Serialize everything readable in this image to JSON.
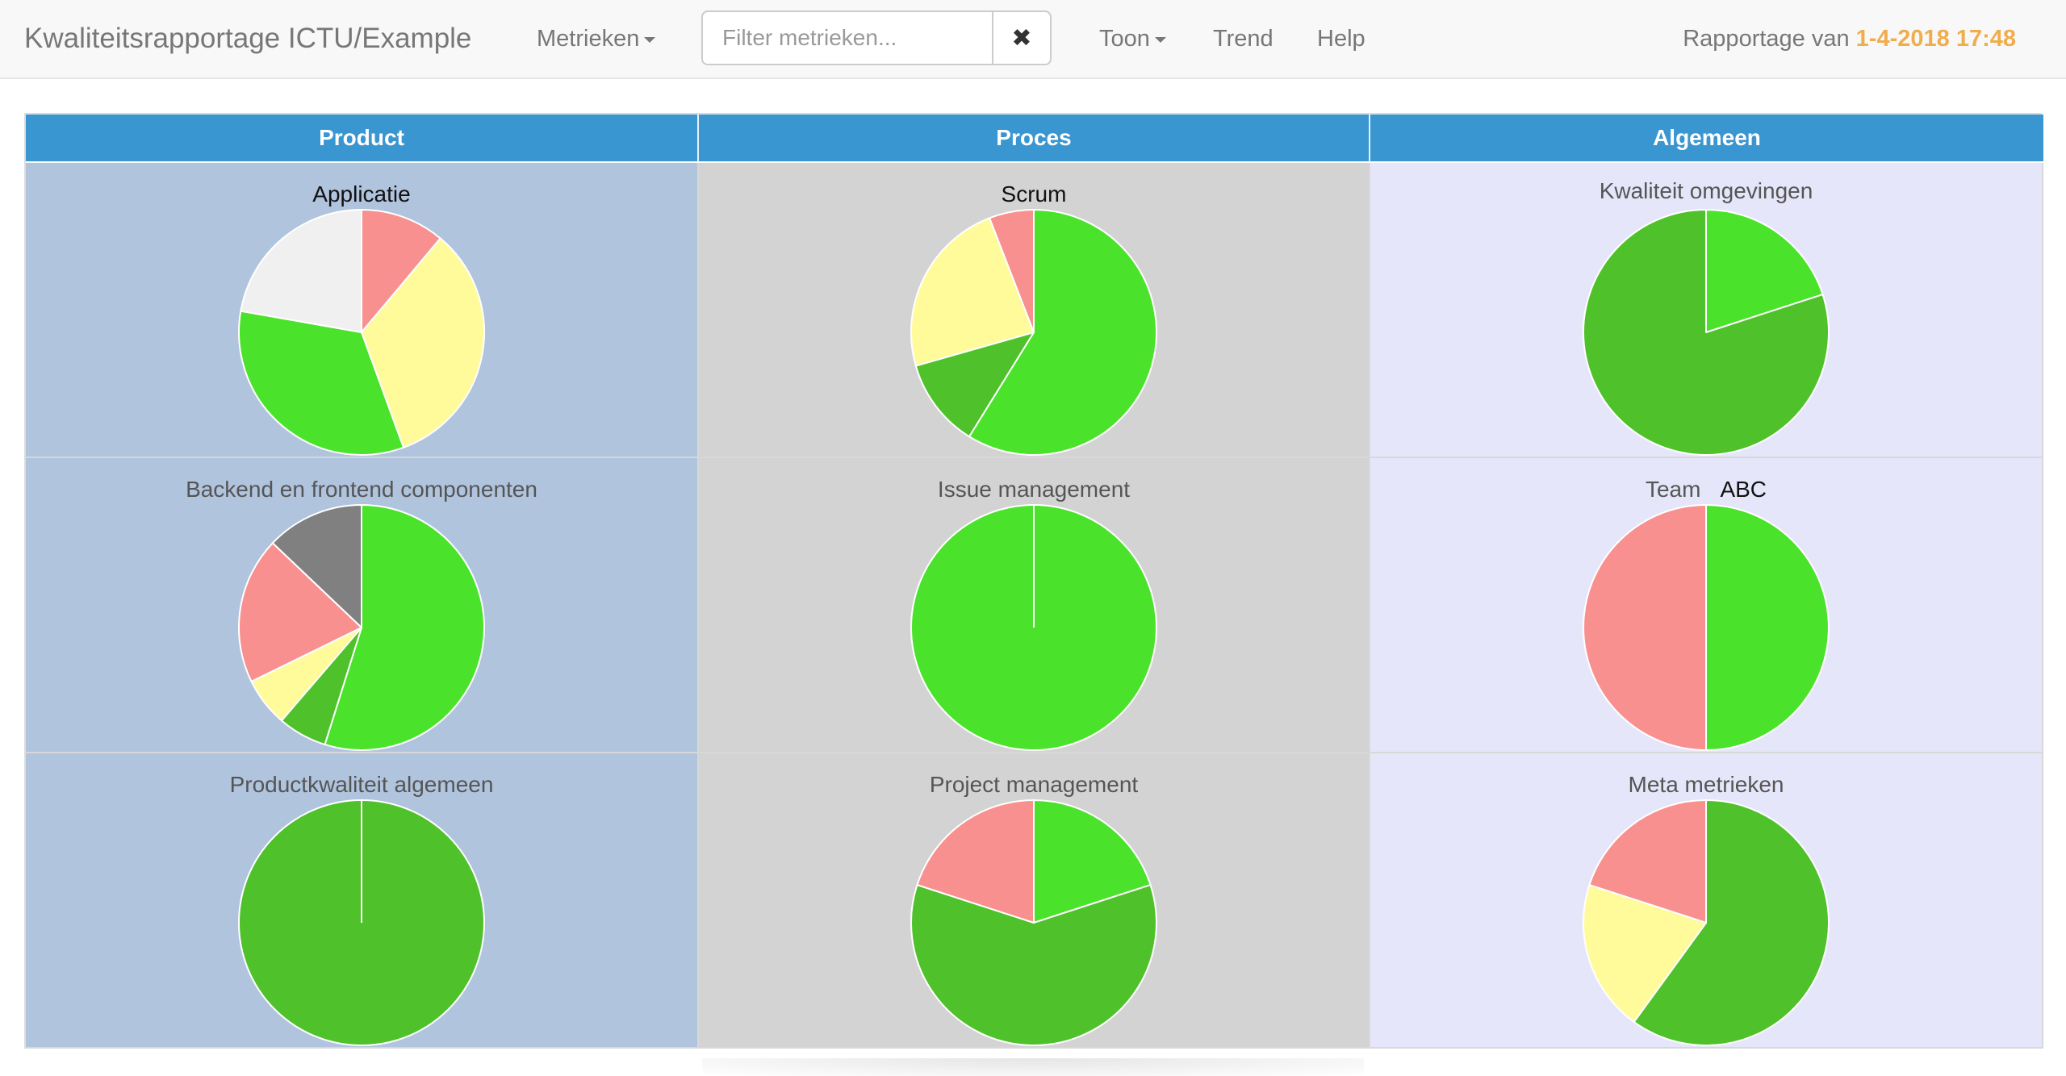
{
  "navbar": {
    "brand": "Kwaliteitsrapportage ICTU/Example",
    "metrics_menu": "Metrieken",
    "filter_placeholder": "Filter metrieken...",
    "clear_symbol": "✖",
    "show_menu": "Toon",
    "trend": "Trend",
    "help": "Help",
    "report_prefix": "Rapportage van",
    "report_timestamp": "1-4-2018 17:48"
  },
  "colors": {
    "header": "#3a96d0",
    "product_bg": "#b0c4de",
    "process_bg": "#d3d3d3",
    "general_bg": "#e6e6fa",
    "accent": "#f0ad4e"
  },
  "columns": [
    "Product",
    "Proces",
    "Algemeen"
  ],
  "chart_data": [
    {
      "type": "pie",
      "title": "Applicatie",
      "categories": [
        "green",
        "grey",
        "red",
        "yellow",
        "perfect",
        "missing"
      ],
      "values": [
        0,
        0,
        1,
        3,
        3,
        2
      ],
      "colors": [
        "#4fc12b",
        "#808080",
        "#f99090",
        "#fffb9b",
        "#4be22b",
        "#f0f0f0"
      ]
    },
    {
      "type": "pie",
      "title": "Scrum",
      "categories": [
        "perfect",
        "green",
        "yellow",
        "red"
      ],
      "values": [
        10,
        2,
        4,
        1
      ],
      "colors": [
        "#4be22b",
        "#4fc12b",
        "#fffb9b",
        "#f99090"
      ]
    },
    {
      "type": "pie",
      "title": "Kwaliteit omgevingen",
      "categories": [
        "perfect",
        "green"
      ],
      "values": [
        1,
        4
      ],
      "colors": [
        "#4be22b",
        "#4fc12b"
      ]
    },
    {
      "type": "pie",
      "title": "Backend en frontend componenten",
      "categories": [
        "perfect",
        "green",
        "yellow",
        "red",
        "grey"
      ],
      "values": [
        17,
        2,
        2,
        6,
        4
      ],
      "colors": [
        "#4be22b",
        "#4fc12b",
        "#fffb9b",
        "#f99090",
        "#808080"
      ]
    },
    {
      "type": "pie",
      "title": "Issue management",
      "categories": [
        "perfect"
      ],
      "values": [
        1
      ],
      "colors": [
        "#4be22b"
      ]
    },
    {
      "type": "pie",
      "title": "Team",
      "title_extra": "ABC",
      "categories": [
        "perfect",
        "red"
      ],
      "values": [
        1,
        1
      ],
      "colors": [
        "#4be22b",
        "#f99090"
      ]
    },
    {
      "type": "pie",
      "title": "Productkwaliteit algemeen",
      "categories": [
        "green"
      ],
      "values": [
        1
      ],
      "colors": [
        "#4fc12b"
      ]
    },
    {
      "type": "pie",
      "title": "Project management",
      "categories": [
        "perfect",
        "green",
        "red"
      ],
      "values": [
        1,
        3,
        1
      ],
      "colors": [
        "#4be22b",
        "#4fc12b",
        "#f99090"
      ]
    },
    {
      "type": "pie",
      "title": "Meta metrieken",
      "categories": [
        "green",
        "yellow",
        "red"
      ],
      "values": [
        3,
        1,
        1
      ],
      "colors": [
        "#4fc12b",
        "#fffb9b",
        "#f99090"
      ]
    }
  ]
}
